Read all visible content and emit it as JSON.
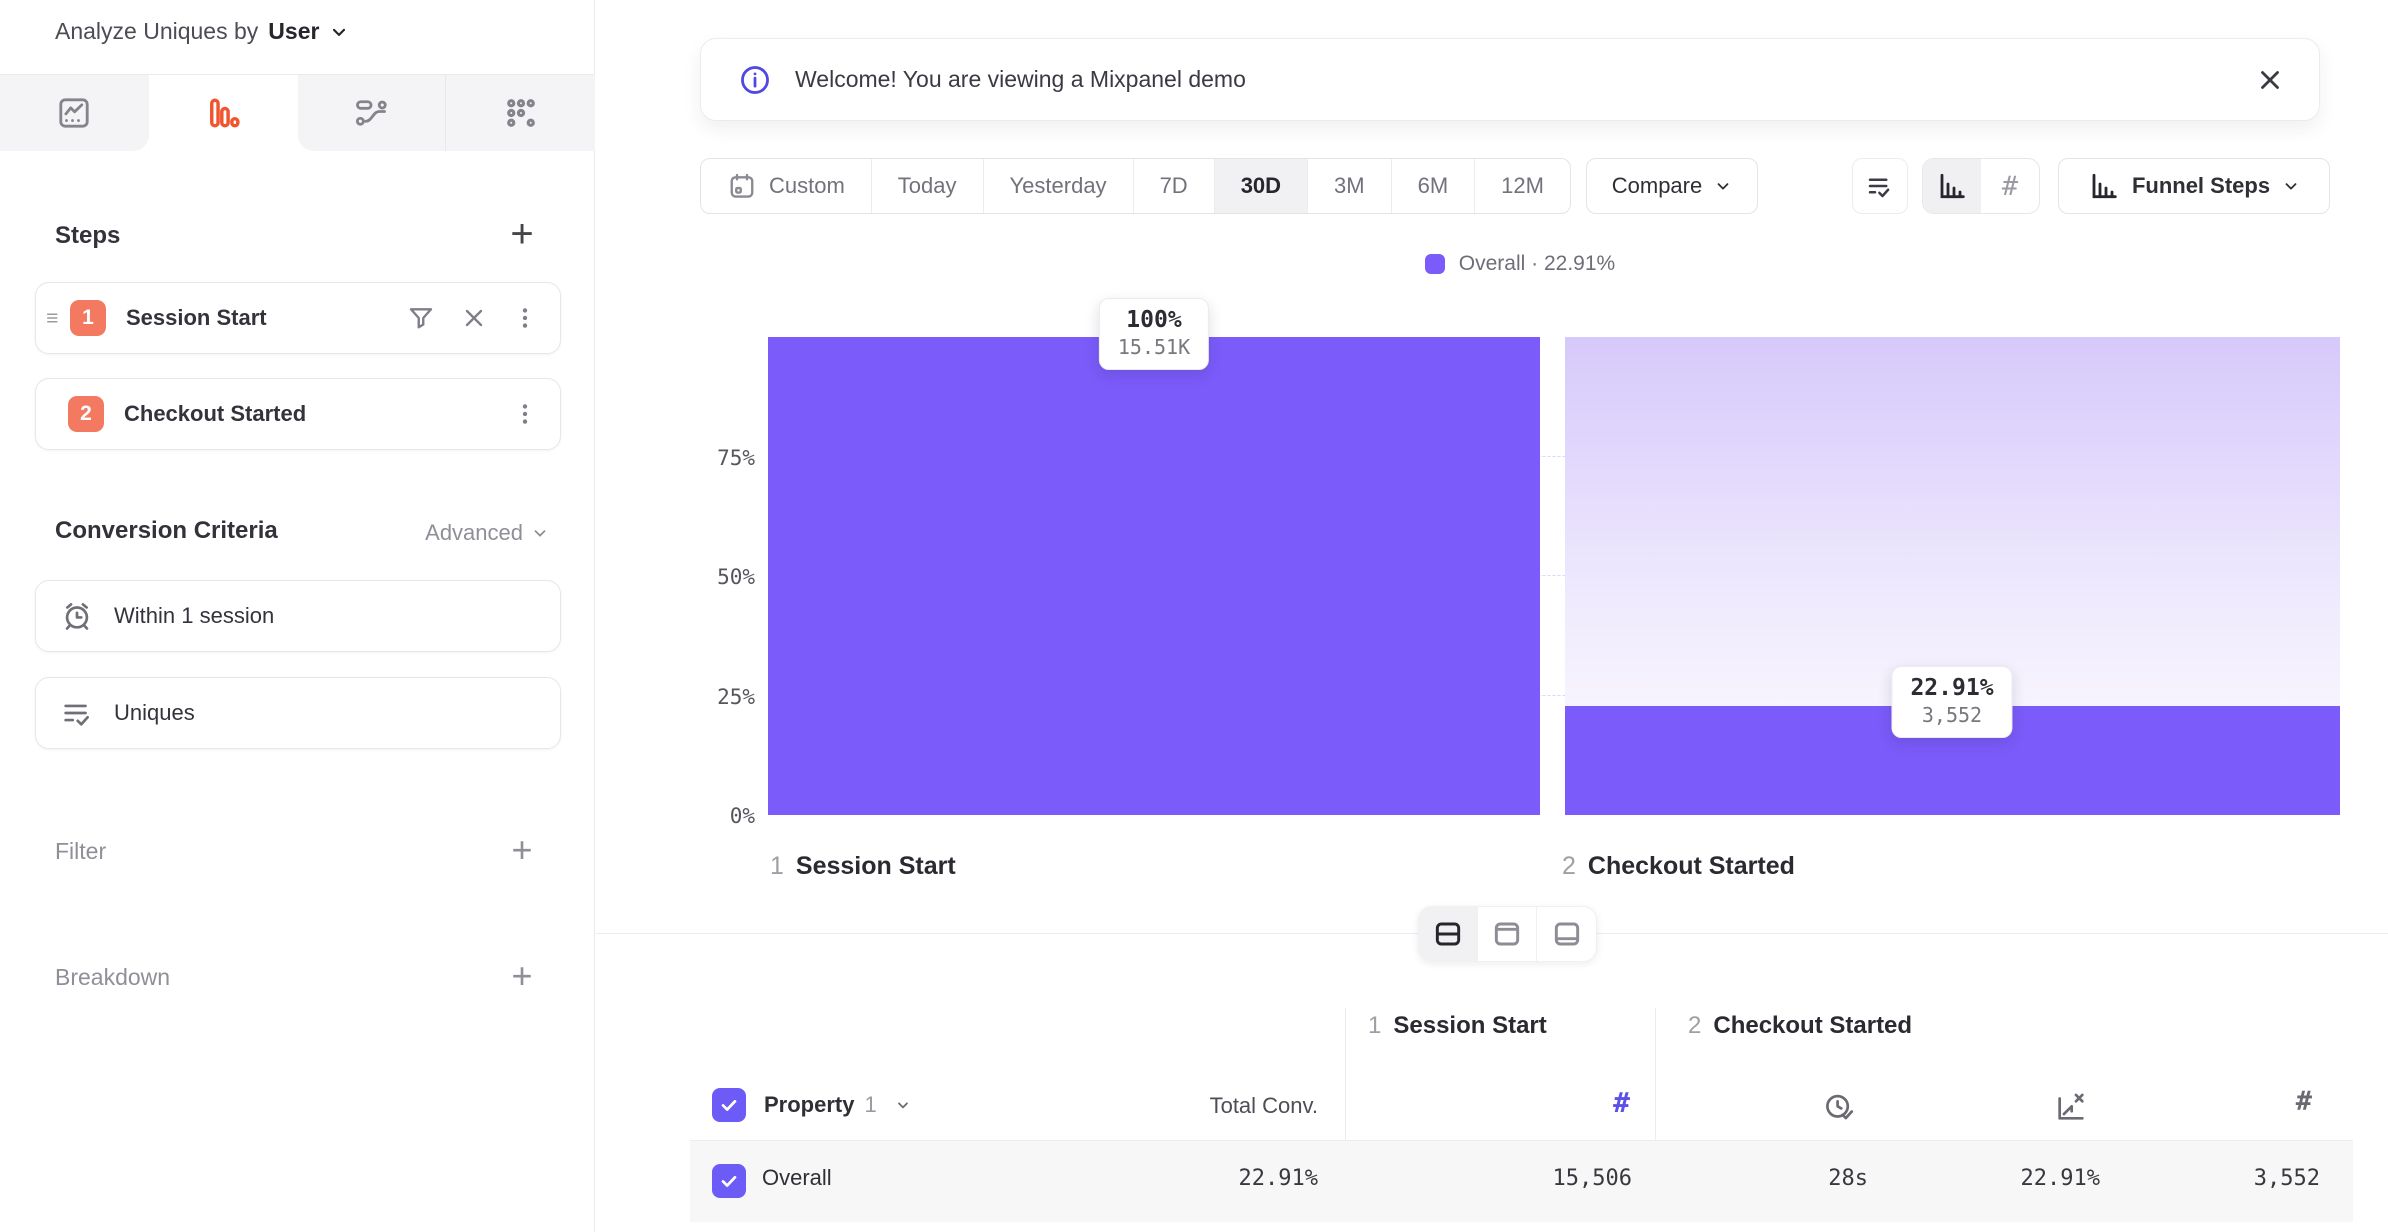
{
  "sidebar": {
    "analyze_prefix": "Analyze Uniques by",
    "analyze_entity": "User",
    "steps_label": "Steps",
    "steps": [
      {
        "num": "1",
        "label": "Session Start"
      },
      {
        "num": "2",
        "label": "Checkout Started"
      }
    ],
    "conversion_criteria_label": "Conversion Criteria",
    "advanced_label": "Advanced",
    "criteria": [
      {
        "label": "Within 1 session"
      },
      {
        "label": "Uniques"
      }
    ],
    "filter_label": "Filter",
    "breakdown_label": "Breakdown"
  },
  "banner": {
    "text": "Welcome! You are viewing a Mixpanel demo"
  },
  "toolbar": {
    "ranges": [
      "Custom",
      "Today",
      "Yesterday",
      "7D",
      "30D",
      "3M",
      "6M",
      "12M"
    ],
    "selected_range": "30D",
    "compare_label": "Compare",
    "funnel_steps_label": "Funnel Steps"
  },
  "icons": {
    "plus": "+",
    "hash": "#"
  },
  "chart_data": {
    "type": "bar",
    "subtype": "funnel-steps",
    "categories": [
      "Session Start",
      "Checkout Started"
    ],
    "series": [
      {
        "name": "Overall",
        "values": [
          100,
          22.91
        ]
      }
    ],
    "counts": [
      15506,
      3552
    ],
    "legend_label": "Overall · 22.91%",
    "legend_position": "top-center",
    "yticks": [
      "75%",
      "50%",
      "25%",
      "0%"
    ],
    "ylim": [
      0,
      100
    ],
    "grid": "dashed horizontal lines at 25%, 50%, 75%",
    "bar_color": "#7B5BFA",
    "tooltips": [
      {
        "pct": "100%",
        "count": "15.51K"
      },
      {
        "pct": "22.91%",
        "count": "3,552"
      }
    ],
    "step_labels": [
      {
        "num": "1",
        "name": "Session Start"
      },
      {
        "num": "2",
        "name": "Checkout Started"
      }
    ]
  },
  "table": {
    "property_label": "Property",
    "property_index": "1",
    "total_conv_label": "Total Conv.",
    "groups": [
      {
        "num": "1",
        "name": "Session Start"
      },
      {
        "num": "2",
        "name": "Checkout Started"
      }
    ],
    "row": {
      "name": "Overall",
      "total_conv": "22.91%",
      "step1_uniques": "15,506",
      "step2_avg_time": "28s",
      "step2_conv_rate": "22.91%",
      "step2_uniques": "3,552"
    }
  },
  "colors": {
    "accent_purple": "#6C5BF7",
    "bar_purple": "#7B5BFA",
    "step_badge_orange": "#F47961",
    "active_tab_orange": "#F2552D"
  }
}
